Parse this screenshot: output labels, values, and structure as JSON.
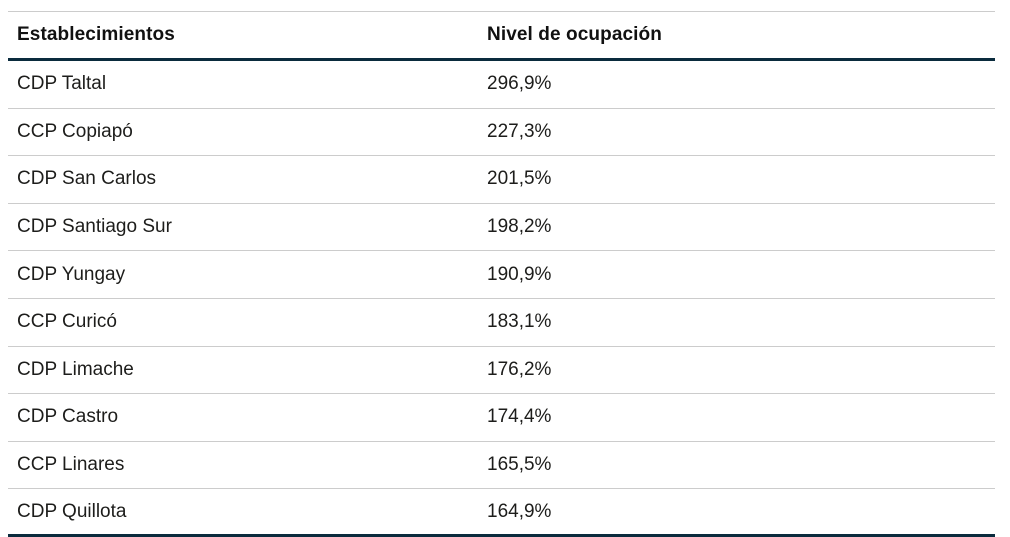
{
  "table": {
    "columns": [
      {
        "label": "Establecimientos"
      },
      {
        "label": "Nivel de ocupación"
      }
    ],
    "rows": [
      {
        "establecimiento": "CDP Taltal",
        "nivel": "296,9%"
      },
      {
        "establecimiento": "CCP Copiapó",
        "nivel": "227,3%"
      },
      {
        "establecimiento": "CDP San Carlos",
        "nivel": "201,5%"
      },
      {
        "establecimiento": "CDP Santiago Sur",
        "nivel": "198,2%"
      },
      {
        "establecimiento": "CDP Yungay",
        "nivel": "190,9%"
      },
      {
        "establecimiento": "CCP Curicó",
        "nivel": "183,1%"
      },
      {
        "establecimiento": "CDP Limache",
        "nivel": "176,2%"
      },
      {
        "establecimiento": "CDP Castro",
        "nivel": "174,4%"
      },
      {
        "establecimiento": "CCP Linares",
        "nivel": "165,5%"
      },
      {
        "establecimiento": "CDP Quillota",
        "nivel": "164,9%"
      }
    ],
    "colors": {
      "accent_rule": "#0a2b3d",
      "separator": "#cccccc",
      "header_text": "#111111",
      "body_text": "#1d1d1b"
    }
  },
  "chart_data": {
    "type": "table",
    "title": "",
    "columns": [
      "Establecimientos",
      "Nivel de ocupación"
    ],
    "categories": [
      "CDP Taltal",
      "CCP Copiapó",
      "CDP San Carlos",
      "CDP Santiago Sur",
      "CDP Yungay",
      "CCP Curicó",
      "CDP Limache",
      "CDP Castro",
      "CCP Linares",
      "CDP Quillota"
    ],
    "values_percent": [
      296.9,
      227.3,
      201.5,
      198.2,
      190.9,
      183.1,
      176.2,
      174.4,
      165.5,
      164.9
    ],
    "values_label": [
      "296,9%",
      "227,3%",
      "201,5%",
      "198,2%",
      "190,9%",
      "183,1%",
      "176,2%",
      "174,4%",
      "165,5%",
      "164,9%"
    ],
    "layout": {
      "grid": "horizontal separators only",
      "header_rule": "thick dark navy",
      "sort": "descending by occupancy"
    }
  }
}
